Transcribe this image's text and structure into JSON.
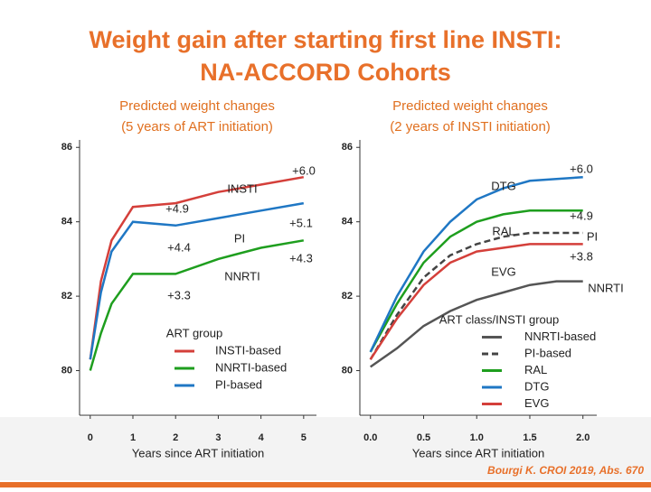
{
  "title": [
    "Weight gain after starting first line INSTI:",
    "NA-ACCORD Cohorts"
  ],
  "citation": "Bourgi K. CROI 2019, Abs. 670",
  "chart_data": [
    {
      "type": "line",
      "subtitle": [
        "Predicted weight changes",
        "(5 years of ART initiation)"
      ],
      "x_label": "Years since ART initiation",
      "legend_title": "ART group",
      "xlim": [
        -0.25,
        5.3
      ],
      "ylim": [
        78.8,
        86.2
      ],
      "xticks": [
        0,
        1,
        2,
        3,
        4,
        5
      ],
      "yticks": [
        80,
        82,
        84,
        86
      ],
      "x": [
        0,
        0.25,
        0.5,
        1,
        2,
        3,
        4,
        5
      ],
      "series": [
        {
          "name": "INSTI-based",
          "color": "#d43f3a",
          "values": [
            80.3,
            82.4,
            83.5,
            84.4,
            84.5,
            84.8,
            85.0,
            85.2
          ]
        },
        {
          "name": "NNRTI-based",
          "color": "#1e9e1e",
          "values": [
            80.0,
            81.0,
            81.8,
            82.6,
            82.6,
            83.0,
            83.3,
            83.5
          ]
        },
        {
          "name": "PI-based",
          "color": "#1f77c4",
          "values": [
            80.3,
            82.1,
            83.2,
            84.0,
            83.9,
            84.1,
            84.3,
            84.5
          ]
        }
      ],
      "annotations": [
        "+6.0",
        "INSTI",
        "+4.9",
        "+5.1",
        "PI",
        "+4.4",
        "+4.3",
        "NNRTI",
        "+3.3"
      ]
    },
    {
      "type": "line",
      "subtitle": [
        "Predicted weight changes",
        "(2 years of INSTI initiation)"
      ],
      "x_label": "Years since ART initiation",
      "legend_title": "ART class/INSTI group",
      "xlim": [
        -0.1,
        2.13
      ],
      "ylim": [
        78.8,
        86.2
      ],
      "xticks": [
        {
          "value": 0,
          "label": "0.0"
        },
        {
          "value": 0.5,
          "label": "0.5"
        },
        {
          "value": 1,
          "label": "1.0"
        },
        {
          "value": 1.5,
          "label": "1.5"
        },
        {
          "value": 2,
          "label": "2.0"
        }
      ],
      "yticks": [
        80,
        82,
        84,
        86
      ],
      "x": [
        0,
        0.25,
        0.5,
        0.75,
        1,
        1.25,
        1.5,
        1.75,
        2
      ],
      "series": [
        {
          "name": "NNRTI-based",
          "color": "#555555",
          "values": [
            80.1,
            80.6,
            81.2,
            81.6,
            81.9,
            82.1,
            82.3,
            82.4,
            82.4
          ]
        },
        {
          "name": "PI-based",
          "color": "#444444",
          "dash": true,
          "values": [
            80.3,
            81.5,
            82.5,
            83.1,
            83.4,
            83.6,
            83.7,
            83.7,
            83.7
          ]
        },
        {
          "name": "RAL",
          "color": "#1e9e1e",
          "values": [
            80.5,
            81.8,
            82.9,
            83.6,
            84.0,
            84.2,
            84.3,
            84.3,
            84.3
          ]
        },
        {
          "name": "DTG",
          "color": "#1f77c4",
          "values": [
            80.5,
            82.0,
            83.2,
            84.0,
            84.6,
            84.9,
            85.1,
            85.15,
            85.2
          ]
        },
        {
          "name": "EVG",
          "color": "#d43f3a",
          "values": [
            80.3,
            81.4,
            82.3,
            82.9,
            83.2,
            83.3,
            83.4,
            83.4,
            83.4
          ]
        }
      ],
      "annotations": [
        "DTG",
        "+6.0",
        "+4.9",
        "RAL",
        "PI",
        "+3.8",
        "EVG",
        "NNRTI"
      ]
    }
  ]
}
